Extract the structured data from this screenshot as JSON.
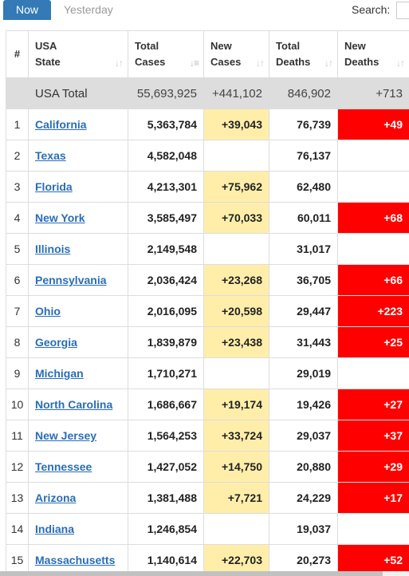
{
  "tabs": {
    "now": "Now",
    "yesterday": "Yesterday"
  },
  "search": {
    "label": "Search:",
    "value": ""
  },
  "columns": {
    "num": "#",
    "state": [
      "USA",
      "State"
    ],
    "total_cases": [
      "Total",
      "Cases"
    ],
    "new_cases": [
      "New",
      "Cases"
    ],
    "total_deaths": [
      "Total",
      "Deaths"
    ],
    "new_deaths": [
      "New",
      "Deaths"
    ]
  },
  "sort_icons": {
    "neutral": "↓↑",
    "active": "↓≡"
  },
  "total_row": {
    "state": "USA Total",
    "total_cases": "55,693,925",
    "new_cases": "+441,102",
    "total_deaths": "846,902",
    "new_deaths": "+713"
  },
  "rows": [
    {
      "num": "1",
      "state": "California",
      "total_cases": "5,363,784",
      "new_cases": "+39,043",
      "total_deaths": "76,739",
      "new_deaths": "+49"
    },
    {
      "num": "2",
      "state": "Texas",
      "total_cases": "4,582,048",
      "new_cases": "",
      "total_deaths": "76,137",
      "new_deaths": ""
    },
    {
      "num": "3",
      "state": "Florida",
      "total_cases": "4,213,301",
      "new_cases": "+75,962",
      "total_deaths": "62,480",
      "new_deaths": ""
    },
    {
      "num": "4",
      "state": "New York",
      "total_cases": "3,585,497",
      "new_cases": "+70,033",
      "total_deaths": "60,011",
      "new_deaths": "+68"
    },
    {
      "num": "5",
      "state": "Illinois",
      "total_cases": "2,149,548",
      "new_cases": "",
      "total_deaths": "31,017",
      "new_deaths": ""
    },
    {
      "num": "6",
      "state": "Pennsylvania",
      "total_cases": "2,036,424",
      "new_cases": "+23,268",
      "total_deaths": "36,705",
      "new_deaths": "+66"
    },
    {
      "num": "7",
      "state": "Ohio",
      "total_cases": "2,016,095",
      "new_cases": "+20,598",
      "total_deaths": "29,447",
      "new_deaths": "+223"
    },
    {
      "num": "8",
      "state": "Georgia",
      "total_cases": "1,839,879",
      "new_cases": "+23,438",
      "total_deaths": "31,443",
      "new_deaths": "+25"
    },
    {
      "num": "9",
      "state": "Michigan",
      "total_cases": "1,710,271",
      "new_cases": "",
      "total_deaths": "29,019",
      "new_deaths": ""
    },
    {
      "num": "10",
      "state": "North Carolina",
      "total_cases": "1,686,667",
      "new_cases": "+19,174",
      "total_deaths": "19,426",
      "new_deaths": "+27"
    },
    {
      "num": "11",
      "state": "New Jersey",
      "total_cases": "1,564,253",
      "new_cases": "+33,724",
      "total_deaths": "29,037",
      "new_deaths": "+37"
    },
    {
      "num": "12",
      "state": "Tennessee",
      "total_cases": "1,427,052",
      "new_cases": "+14,750",
      "total_deaths": "20,880",
      "new_deaths": "+29"
    },
    {
      "num": "13",
      "state": "Arizona",
      "total_cases": "1,381,488",
      "new_cases": "+7,721",
      "total_deaths": "24,229",
      "new_deaths": "+17"
    },
    {
      "num": "14",
      "state": "Indiana",
      "total_cases": "1,246,854",
      "new_cases": "",
      "total_deaths": "19,037",
      "new_deaths": ""
    },
    {
      "num": "15",
      "state": "Massachusetts",
      "total_cases": "1,140,614",
      "new_cases": "+22,703",
      "total_deaths": "20,273",
      "new_deaths": "+52"
    }
  ],
  "colors": {
    "accent": "#337ab7",
    "new_cases_highlight": "#ffeeaa",
    "new_deaths_highlight": "#ff0000",
    "link": "#2a6db5",
    "total_row_bg": "#dddddd"
  }
}
